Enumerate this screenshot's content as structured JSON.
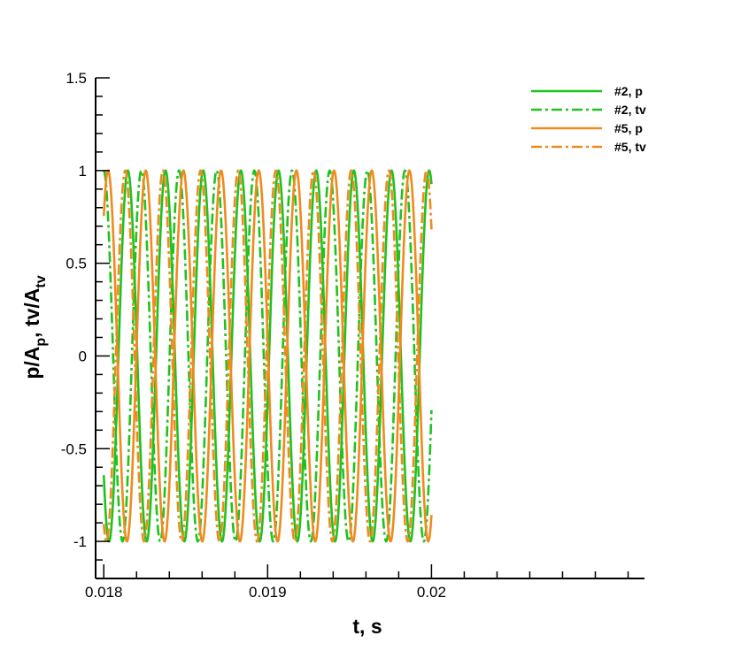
{
  "chart_data": {
    "type": "line",
    "title": "",
    "xlabel": "t, s",
    "ylabel": {
      "parts": [
        "p/A",
        "p",
        ", tv/A",
        "tv"
      ]
    },
    "xlim": [
      0.01795,
      0.0213
    ],
    "ylim": [
      -1.2,
      1.5
    ],
    "x_ticks": [
      0.018,
      0.019,
      0.02
    ],
    "x_tick_labels": [
      "0.018",
      "0.019",
      "0.02"
    ],
    "y_ticks": [
      1.5,
      1,
      0.5,
      0,
      -0.5,
      -1
    ],
    "y_tick_labels": [
      "1.5",
      "1",
      "0.5",
      "0",
      "-0.5",
      "-1"
    ],
    "grid": false,
    "legend_position": "top-right",
    "x_start": 0.018,
    "x_end": 0.02,
    "frequency_hz": 4350,
    "series": [
      {
        "name": "#2, p",
        "color": "#1ec31e",
        "dash": "solid",
        "amplitude": 1,
        "phase_deg": 220
      },
      {
        "name": "#2, tv",
        "color": "#1ec31e",
        "dash": "dash-dot",
        "amplitude": 1,
        "phase_deg": 91
      },
      {
        "name": "#5, p",
        "color": "#f08a1e",
        "dash": "solid",
        "amplitude": 1,
        "phase_deg": 49
      },
      {
        "name": "#5, tv",
        "color": "#f08a1e",
        "dash": "dash-dot",
        "amplitude": 1,
        "phase_deg": 245
      }
    ]
  }
}
